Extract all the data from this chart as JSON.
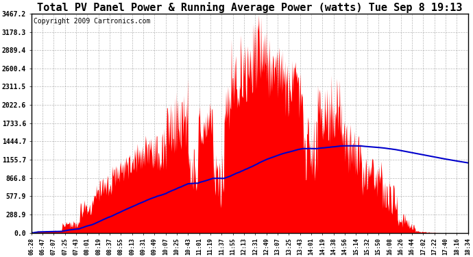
{
  "title": "Total PV Panel Power & Running Average Power (watts) Tue Sep 8 19:13",
  "copyright": "Copyright 2009 Cartronics.com",
  "yticks": [
    0.0,
    288.9,
    577.9,
    866.8,
    1155.7,
    1444.7,
    1733.6,
    2022.6,
    2311.5,
    2600.4,
    2889.4,
    3178.3,
    3467.2
  ],
  "ymax": 3467.2,
  "xtick_labels": [
    "06:28",
    "06:47",
    "07:07",
    "07:25",
    "07:43",
    "08:01",
    "08:19",
    "08:37",
    "08:55",
    "09:13",
    "09:31",
    "09:49",
    "10:07",
    "10:25",
    "10:43",
    "11:01",
    "11:19",
    "11:37",
    "11:55",
    "12:13",
    "12:31",
    "12:49",
    "13:07",
    "13:25",
    "13:43",
    "14:01",
    "14:19",
    "14:38",
    "14:56",
    "15:14",
    "15:32",
    "15:50",
    "16:08",
    "16:26",
    "16:44",
    "17:02",
    "17:22",
    "17:40",
    "18:16",
    "18:34"
  ],
  "fill_color": "#ff0000",
  "line_color": "#0000cc",
  "background_color": "#ffffff",
  "grid_color": "#888888",
  "title_fontsize": 11,
  "copyright_fontsize": 7,
  "figwidth": 6.9,
  "figheight": 3.75
}
